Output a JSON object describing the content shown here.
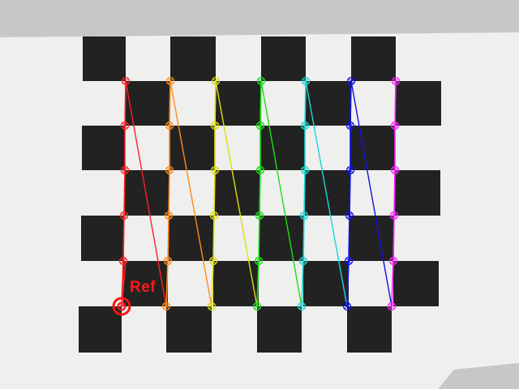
{
  "image": {
    "subject": "calibration-checkerboard",
    "paper_color": "#efefee",
    "backdrop_color": "#c7c8c6",
    "square_color": "#222222"
  },
  "board": {
    "rows": 7,
    "cols": 8,
    "inner_corner_rows": 6,
    "inner_corner_cols": 7
  },
  "detection": {
    "reference_label": "Ref",
    "reference_color": "#ff1010",
    "column_colors": [
      "#ff2020",
      "#ff8c1a",
      "#dede10",
      "#18e018",
      "#18d8d8",
      "#1010e8",
      "#ff20ff"
    ]
  }
}
